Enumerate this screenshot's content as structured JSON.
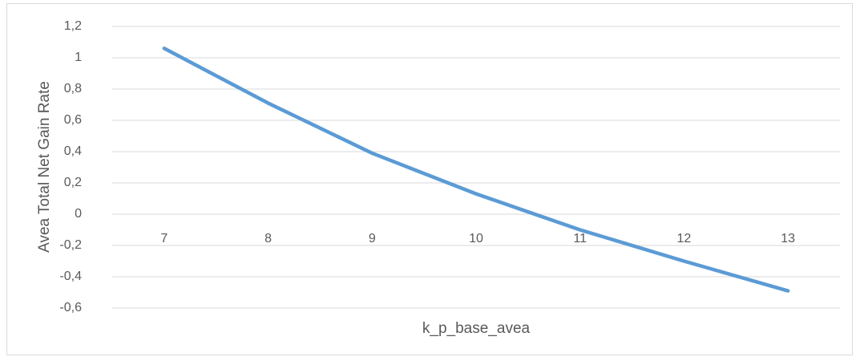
{
  "chart_data": {
    "type": "line",
    "categories": [
      "7",
      "8",
      "9",
      "10",
      "11",
      "12",
      "13"
    ],
    "series": [
      {
        "name": "Avea Total Net Gain Rate",
        "color": "#5b9bd5",
        "values": [
          1.06,
          0.71,
          0.39,
          0.13,
          -0.1,
          -0.3,
          -0.49
        ]
      }
    ],
    "ylim": [
      -0.6,
      1.2
    ],
    "yticks": [
      {
        "value": -0.6,
        "label": "-0,6"
      },
      {
        "value": -0.4,
        "label": "-0,4"
      },
      {
        "value": -0.2,
        "label": "-0,2"
      },
      0,
      {
        "value": 0.2,
        "label": "0,2"
      },
      {
        "value": 0.4,
        "label": "0,4"
      },
      {
        "value": 0.6,
        "label": "0,6"
      },
      {
        "value": 0.8,
        "label": "0,8"
      },
      1,
      {
        "value": 1.2,
        "label": "1,2"
      }
    ],
    "y_label": "Avea Total Net Gain Rate",
    "x_label": "k_p_base_avea",
    "grid": true
  }
}
